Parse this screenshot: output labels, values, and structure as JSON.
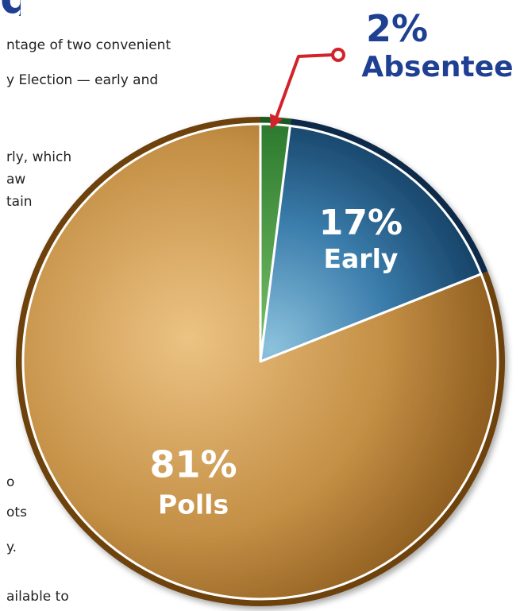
{
  "heading_fragment": "g",
  "body_text_fragments": [
    "ntage of two convenient",
    "y Election — early and",
    "rly, which",
    "aw",
    "tain",
    "o",
    "ots",
    "y.",
    "ailable to"
  ],
  "chart_data": {
    "type": "pie",
    "start_angle_deg": 0,
    "direction": "clockwise",
    "slices": [
      {
        "percent_label": "2%",
        "category": "Absentee",
        "value": 2,
        "color": "#2f8a3a",
        "callout": true
      },
      {
        "percent_label": "17%",
        "category": "Early",
        "value": 17,
        "color": "#2a6a9a"
      },
      {
        "percent_label": "81%",
        "category": "Polls",
        "value": 81,
        "color": "#c9974f"
      }
    ],
    "colors": {
      "absentee_label": "#1f3f93",
      "slice_label": "#ffffff",
      "callout_arrow": "#d2232a",
      "polls_rim": "#6e4208",
      "early_rim": "#0e2c4a",
      "absentee_rim": "#1f5a22"
    }
  }
}
